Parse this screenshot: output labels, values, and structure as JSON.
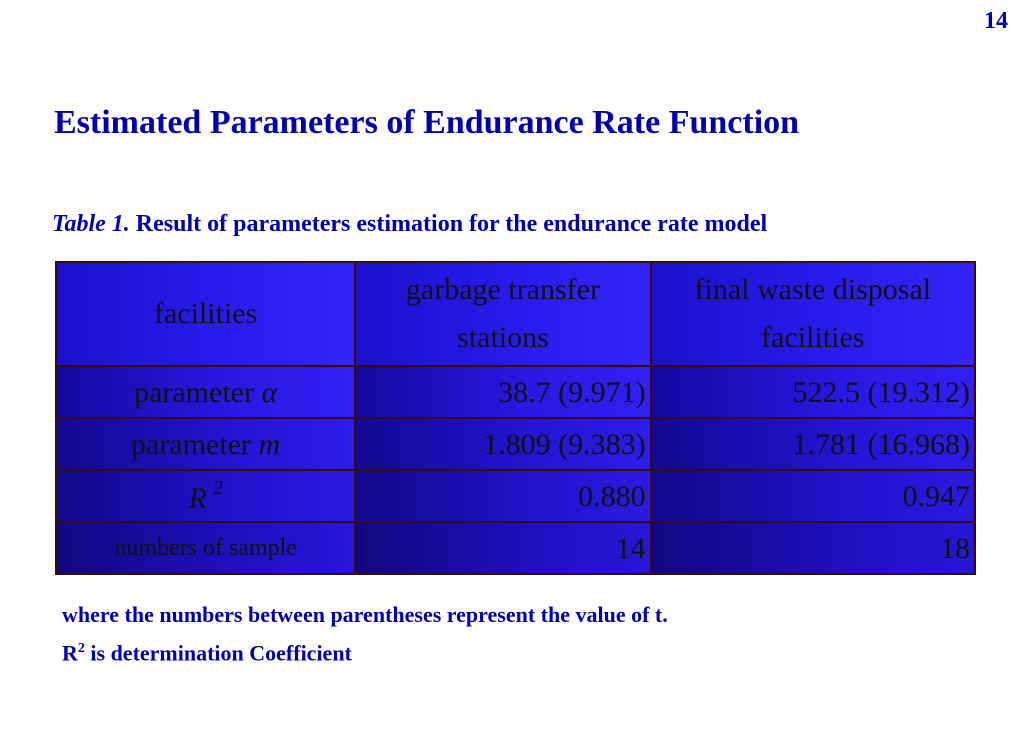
{
  "page_number": "14",
  "title": "Estimated Parameters of Endurance Rate Function",
  "caption": {
    "label": "Table 1.",
    "text": "Result of parameters estimation for the endurance rate model"
  },
  "table": {
    "header": {
      "col1": "facilities",
      "col2_line1": "garbage transfer",
      "col2_line2": "stations",
      "col3_line1": "final waste disposal",
      "col3_line2": "facilities"
    },
    "rows": [
      {
        "label": "parameter ",
        "symbol": "α",
        "v1": "38.7 (9.971)",
        "v2": "522.5 (19.312)"
      },
      {
        "label": "parameter ",
        "symbol": "m",
        "v1": "1.809 (9.383)",
        "v2": "1.781 (16.968)"
      },
      {
        "label": "R",
        "sup": "2",
        "v1": "0.880",
        "v2": "0.947"
      },
      {
        "label": "numbers of sample",
        "v1": "14",
        "v2": "18"
      }
    ]
  },
  "notes": {
    "line1": "where the numbers between parentheses represent the value of t.",
    "line2_prefix": "R",
    "line2_sup": "2",
    "line2_rest": " is determination Coefficient"
  }
}
